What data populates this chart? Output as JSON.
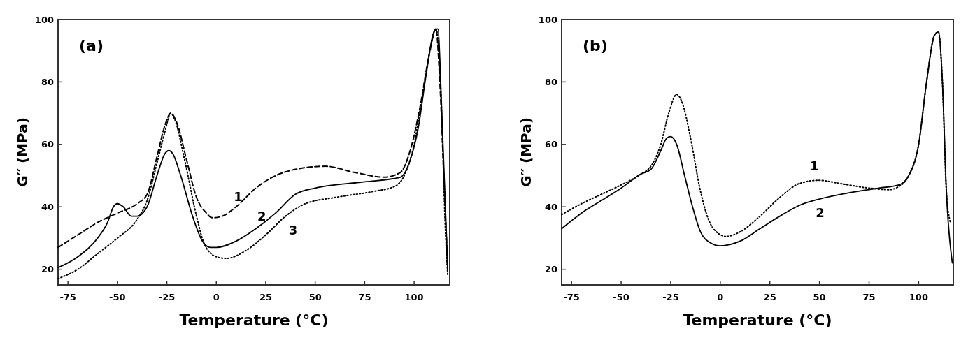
{
  "chart_data": [
    {
      "type": "line",
      "title": "(a)",
      "xlabel": "Temperature (°C)",
      "ylabel": "G′′ (MPa)",
      "xlim": [
        -80,
        118
      ],
      "ylim": [
        15,
        100
      ],
      "xticks": [
        -75,
        -50,
        -25,
        0,
        25,
        50,
        75,
        100
      ],
      "yticks": [
        20,
        40,
        60,
        80,
        100
      ],
      "grid": false,
      "series": [
        {
          "name": "1",
          "color": "#000000",
          "line_style": "dashed",
          "x": [
            -80,
            -70,
            -60,
            -50,
            -40,
            -35,
            -30,
            -26,
            -23,
            -20,
            -15,
            -10,
            -5,
            -2,
            3,
            10,
            20,
            30,
            40,
            55,
            70,
            85,
            93,
            98,
            103,
            108,
            111,
            113,
            115,
            117
          ],
          "values": [
            27,
            31,
            35,
            38,
            41,
            44,
            56,
            66,
            70,
            67,
            55,
            43,
            38,
            36.5,
            37,
            40,
            46,
            50,
            52,
            53,
            51,
            49.5,
            51,
            58,
            72,
            90,
            97,
            80,
            50,
            20
          ]
        },
        {
          "name": "2",
          "color": "#000000",
          "line_style": "solid",
          "x": [
            -80,
            -70,
            -60,
            -55,
            -52,
            -50,
            -47,
            -43,
            -40,
            -35,
            -30,
            -26,
            -24,
            -22,
            -18,
            -12,
            -7,
            -3,
            0,
            10,
            20,
            30,
            40,
            50,
            75,
            93,
            98,
            102,
            106,
            110,
            112,
            114,
            117
          ],
          "values": [
            20.5,
            24,
            30,
            35,
            40,
            41,
            40,
            37,
            37,
            40,
            50,
            57,
            58,
            57,
            50,
            37,
            29,
            27,
            27,
            29,
            33,
            38,
            44,
            46,
            48,
            49.5,
            55,
            65,
            82,
            96,
            97,
            70,
            20
          ]
        },
        {
          "name": "3",
          "color": "#000000",
          "line_style": "dotted",
          "x": [
            -80,
            -70,
            -60,
            -50,
            -40,
            -35,
            -30,
            -26,
            -23,
            -21,
            -16,
            -10,
            -6,
            0,
            5,
            15,
            25,
            35,
            45,
            60,
            80,
            90,
            95,
            100,
            104,
            108,
            111,
            113,
            116,
            117
          ],
          "values": [
            17,
            20,
            25,
            30,
            36,
            42,
            54,
            64,
            70,
            68,
            55,
            37,
            28,
            24,
            23.5,
            26,
            31,
            37,
            41,
            43,
            45,
            46.5,
            50,
            60,
            75,
            90,
            97,
            85,
            30,
            18
          ]
        }
      ],
      "legend": false
    },
    {
      "type": "line",
      "title": "(b)",
      "xlabel": "Temperature (°C)",
      "ylabel": "G′′ (MPa)",
      "xlim": [
        -80,
        117.5
      ],
      "ylim": [
        15,
        100
      ],
      "xticks": [
        -75,
        -50,
        -25,
        0,
        25,
        50,
        75,
        100
      ],
      "yticks": [
        20,
        40,
        60,
        80,
        100
      ],
      "grid": false,
      "series": [
        {
          "name": "1",
          "color": "#000000",
          "line_style": "dotted",
          "x": [
            -80,
            -70,
            -60,
            -50,
            -40,
            -35,
            -30,
            -26,
            -22,
            -19,
            -15,
            -10,
            -6,
            -2,
            3,
            10,
            20,
            30,
            40,
            50,
            60,
            75,
            85,
            90,
            95,
            100,
            104,
            108,
            110,
            112,
            114,
            116
          ],
          "values": [
            37.5,
            41,
            44,
            47,
            50.5,
            53,
            60,
            70,
            76,
            73,
            62,
            45,
            36,
            32,
            30.5,
            32,
            37,
            43,
            47.5,
            48.5,
            47.5,
            46,
            45.5,
            46.5,
            50,
            60,
            80,
            95,
            96,
            80,
            45,
            35
          ]
        },
        {
          "name": "2",
          "color": "#000000",
          "line_style": "solid",
          "x": [
            -80,
            -70,
            -60,
            -50,
            -40,
            -35,
            -30,
            -27,
            -25,
            -22,
            -18,
            -14,
            -10,
            -5,
            0,
            10,
            20,
            30,
            40,
            50,
            65,
            80,
            90,
            95,
            100,
            104,
            108,
            110,
            112,
            114,
            117
          ],
          "values": [
            33,
            38,
            42,
            46,
            50.5,
            52,
            58,
            62,
            62.5,
            60,
            50,
            40,
            32,
            28.5,
            27.5,
            29,
            33,
            37,
            40.5,
            42.5,
            44.5,
            46,
            47,
            50,
            60,
            80,
            95,
            96,
            80,
            45,
            22
          ]
        }
      ],
      "legend": false
    }
  ]
}
